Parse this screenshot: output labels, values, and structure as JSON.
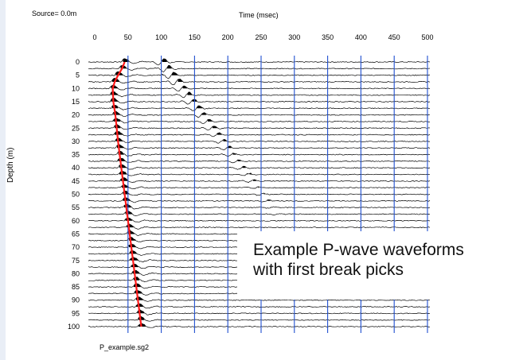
{
  "source_label": "Source= 0.0m",
  "file_label": "P_example.sg2",
  "annotation": {
    "line1": "Example P-wave waveforms",
    "line2": "with first break picks"
  },
  "colors": {
    "pick_line": "#ff1a1a",
    "grid_line": "#1f4fd0",
    "trace": "#000000"
  },
  "chart_data": {
    "type": "line",
    "title": "",
    "xlabel": "Time (msec)",
    "ylabel": "Depth (m)",
    "xlim": [
      0,
      500
    ],
    "ylim": [
      0,
      100
    ],
    "x_ticks": [
      0,
      50,
      100,
      150,
      200,
      250,
      300,
      350,
      400,
      450,
      500
    ],
    "y_ticks": [
      0,
      5,
      10,
      15,
      20,
      25,
      30,
      35,
      40,
      45,
      50,
      55,
      60,
      65,
      70,
      75,
      80,
      85,
      90,
      95,
      100
    ],
    "x_axis_position": "top",
    "y_axis_inverted": true,
    "grid": {
      "vertical": true,
      "horizontal": false
    },
    "trace_spacing_m": 2.5,
    "series": [
      {
        "name": "",
        "points": [
          {
            "depth": 0,
            "time": 45
          },
          {
            "depth": 2.5,
            "time": 41
          },
          {
            "depth": 5,
            "time": 35
          },
          {
            "depth": 7.5,
            "time": 30
          },
          {
            "depth": 10,
            "time": 27
          },
          {
            "depth": 15,
            "time": 28
          },
          {
            "depth": 20,
            "time": 31
          },
          {
            "depth": 30,
            "time": 35
          },
          {
            "depth": 40,
            "time": 40
          },
          {
            "depth": 50,
            "time": 45
          },
          {
            "depth": 60,
            "time": 50
          },
          {
            "depth": 70,
            "time": 55
          },
          {
            "depth": 80,
            "time": 60
          },
          {
            "depth": 90,
            "time": 65
          },
          {
            "depth": 100,
            "time": 70
          }
        ]
      }
    ]
  }
}
